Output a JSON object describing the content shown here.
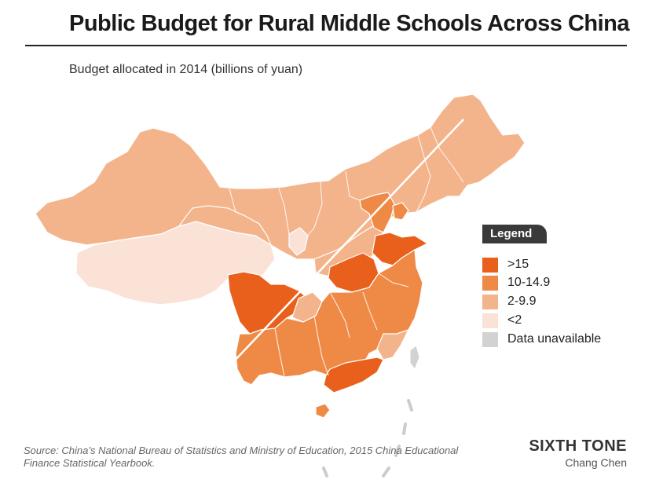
{
  "title": "Public Budget for Rural Middle Schools Across China",
  "subtitle": "Budget allocated in 2014 (billions of yuan)",
  "legend": {
    "title": "Legend",
    "items": [
      {
        "label": ">15",
        "color": "#e8601c"
      },
      {
        "label": "10-14.9",
        "color": "#ef8a46"
      },
      {
        "label": "2-9.9",
        "color": "#f3b48c"
      },
      {
        "label": "<2",
        "color": "#fbe2d6"
      },
      {
        "label": "Data unavailable",
        "color": "#d2d2d2"
      }
    ]
  },
  "source": "Source: China’s National Bureau of Statistics and Ministry of Education, 2015 China Educational Finance Statistical Yearbook.",
  "brand": {
    "name": "SIXTH TONE",
    "author": "Chang Chen"
  }
}
